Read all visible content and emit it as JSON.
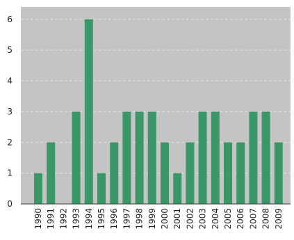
{
  "chart_data": {
    "type": "bar",
    "categories": [
      "1990",
      "1991",
      "1992",
      "1993",
      "1994",
      "1995",
      "1996",
      "1997",
      "1998",
      "1999",
      "2000",
      "2001",
      "2002",
      "2003",
      "2004",
      "2005",
      "2006",
      "2007",
      "2008",
      "2009"
    ],
    "values": [
      1,
      2,
      0,
      3,
      6,
      1,
      2,
      3,
      3,
      3,
      2,
      1,
      2,
      3,
      3,
      2,
      2,
      3,
      3,
      2
    ],
    "y_ticks": [
      "0",
      "1",
      "2",
      "3",
      "4",
      "5",
      "6"
    ],
    "ylim": [
      0,
      6.4
    ],
    "grid": true,
    "legend": "none",
    "colors": {
      "bar": "#3a9868",
      "plot_background": "#c4c4c4",
      "grid": "#e4e4e4"
    }
  }
}
